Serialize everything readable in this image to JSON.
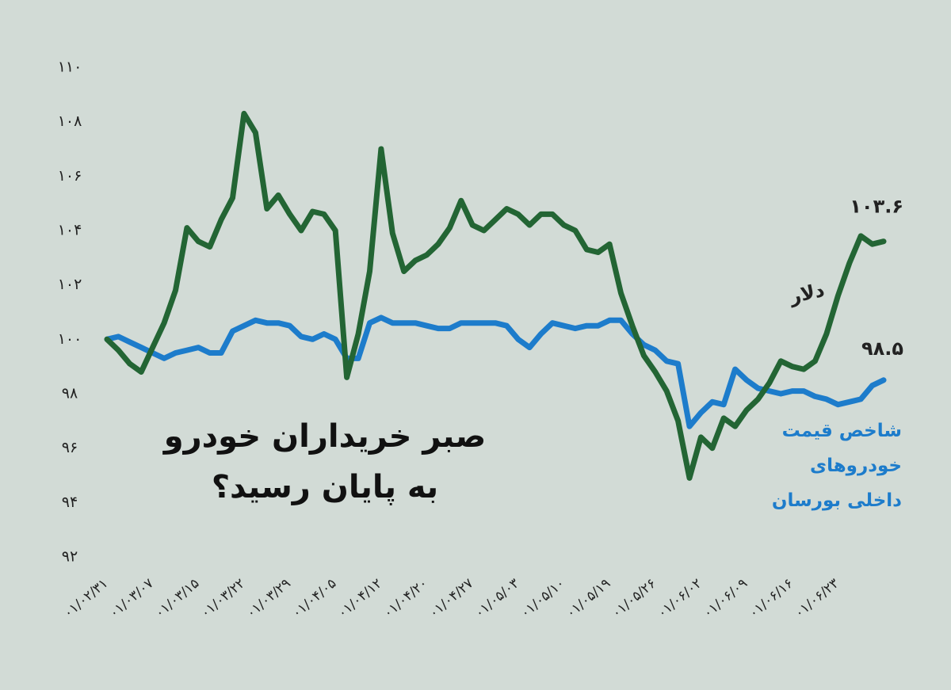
{
  "chart_data": {
    "type": "line",
    "title": [
      "صبر خریداران خودرو",
      "به پایان رسید؟"
    ],
    "categories": [
      "۰۱/۰۲/۳۱",
      null,
      null,
      null,
      "۰۱/۰۳/۰۷",
      null,
      null,
      null,
      "۰۱/۰۳/۱۵",
      null,
      null,
      null,
      "۰۱/۰۳/۲۲",
      null,
      null,
      null,
      "۰۱/۰۳/۲۹",
      null,
      null,
      null,
      "۰۱/۰۴/۰۵",
      null,
      null,
      null,
      "۰۱/۰۴/۱۲",
      null,
      null,
      null,
      "۰۱/۰۴/۲۰",
      null,
      null,
      null,
      "۰۱/۰۴/۲۷",
      null,
      null,
      null,
      "۰۱/۰۵/۰۳",
      null,
      null,
      null,
      "۰۱/۰۵/۱۰",
      null,
      null,
      null,
      "۰۱/۰۵/۱۹",
      null,
      null,
      null,
      "۰۱/۰۵/۲۶",
      null,
      null,
      null,
      "۰۱/۰۶/۰۲",
      null,
      null,
      null,
      "۰۱/۰۶/۰۹",
      null,
      null,
      null,
      "۰۱/۰۶/۱۶",
      null,
      null,
      null,
      "۰۱/۰۶/۲۳",
      null,
      null,
      null,
      null
    ],
    "series": [
      {
        "name": "دلار",
        "color": "#236534",
        "end_label": "۱۰۳.۶",
        "values": [
          100,
          99.6,
          99.1,
          98.8,
          99.7,
          100.6,
          101.8,
          104.1,
          103.6,
          103.4,
          104.4,
          105.2,
          108.3,
          107.6,
          104.8,
          105.3,
          104.6,
          104,
          104.7,
          104.6,
          104,
          98.6,
          100.2,
          102.5,
          107,
          103.9,
          102.5,
          102.9,
          103.1,
          103.5,
          104.1,
          105.1,
          104.2,
          104,
          104.4,
          104.8,
          104.6,
          104.2,
          104.6,
          104.6,
          104.2,
          104,
          103.3,
          103.2,
          103.5,
          101.7,
          100.5,
          99.4,
          98.8,
          98.1,
          97,
          94.9,
          96.4,
          96,
          97.1,
          96.8,
          97.4,
          97.8,
          98.4,
          99.2,
          99,
          98.9,
          99.2,
          100.2,
          101.6,
          102.8,
          103.8,
          103.5,
          103.6
        ]
      },
      {
        "name": "شاخص قیمت خودروهای داخلی بورسان",
        "color": "#1d7ccb",
        "end_label": "۹۸.۵",
        "values": [
          100,
          100.1,
          99.9,
          99.7,
          99.5,
          99.3,
          99.5,
          99.6,
          99.7,
          99.5,
          99.5,
          100.3,
          100.5,
          100.7,
          100.6,
          100.6,
          100.5,
          100.1,
          100,
          100.2,
          100,
          99.3,
          99.3,
          100.6,
          100.8,
          100.6,
          100.6,
          100.6,
          100.5,
          100.4,
          100.4,
          100.6,
          100.6,
          100.6,
          100.6,
          100.5,
          100,
          99.7,
          100.2,
          100.6,
          100.5,
          100.4,
          100.5,
          100.5,
          100.7,
          100.7,
          100.2,
          99.8,
          99.6,
          99.2,
          99.1,
          96.8,
          97.3,
          97.7,
          97.6,
          98.9,
          98.5,
          98.2,
          98.1,
          98,
          98.1,
          98.1,
          97.9,
          97.8,
          97.6,
          97.7,
          97.8,
          98.3,
          98.5
        ]
      }
    ],
    "ylim": [
      92,
      110
    ],
    "yticks": [
      {
        "value": 92,
        "label": "۹۲"
      },
      {
        "value": 94,
        "label": "۹۴"
      },
      {
        "value": 96,
        "label": "۹۶"
      },
      {
        "value": 98,
        "label": "۹۸"
      },
      {
        "value": 100,
        "label": "۱۰۰"
      },
      {
        "value": 102,
        "label": "۱۰۲"
      },
      {
        "value": 104,
        "label": "۱۰۴"
      },
      {
        "value": 106,
        "label": "۱۰۶"
      },
      {
        "value": 108,
        "label": "۱۰۸"
      },
      {
        "value": 110,
        "label": "۱۱۰"
      }
    ],
    "grid": false
  }
}
